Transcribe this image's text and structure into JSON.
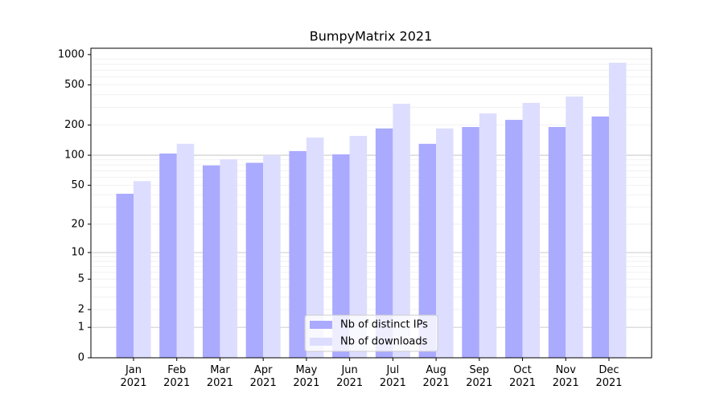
{
  "chart_data": {
    "type": "bar",
    "title": "BumpyMatrix 2021",
    "categories": [
      "Jan\n2021",
      "Feb\n2021",
      "Mar\n2021",
      "Apr\n2021",
      "May\n2021",
      "Jun\n2021",
      "Jul\n2021",
      "Aug\n2021",
      "Sep\n2021",
      "Oct\n2021",
      "Nov\n2021",
      "Dec\n2021"
    ],
    "series": [
      {
        "name": "Nb of distinct IPs",
        "color": "#aaaaff",
        "values": [
          41,
          104,
          79,
          84,
          110,
          102,
          185,
          130,
          191,
          225,
          191,
          243
        ]
      },
      {
        "name": "Nb of downloads",
        "color": "#ddddff",
        "values": [
          55,
          130,
          91,
          100,
          150,
          156,
          325,
          185,
          261,
          332,
          384,
          830
        ]
      }
    ],
    "yscale": "log1p",
    "ylim": [
      0,
      1155
    ],
    "yticks": [
      0,
      1,
      2,
      5,
      10,
      20,
      50,
      100,
      200,
      500,
      1000
    ],
    "major_grid": [
      1,
      10,
      100
    ],
    "minor_grid": [
      2,
      3,
      4,
      5,
      6,
      7,
      8,
      9,
      20,
      30,
      40,
      50,
      60,
      70,
      80,
      90,
      200,
      300,
      400,
      500,
      600,
      700,
      800,
      900
    ],
    "grid": true,
    "legend": "lower center"
  }
}
